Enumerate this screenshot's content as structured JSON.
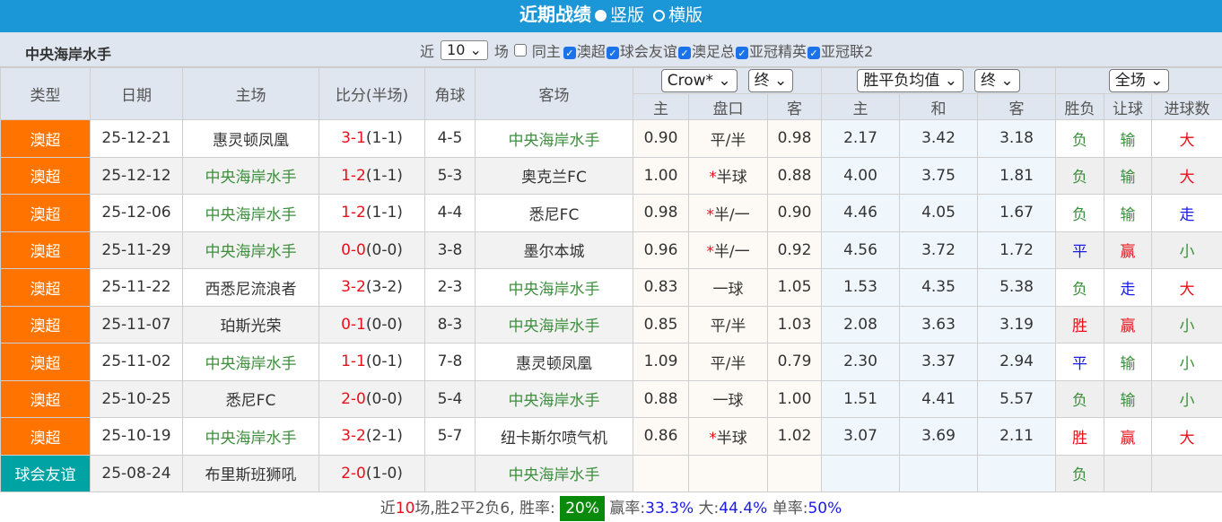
{
  "header": {
    "title": "近期战绩",
    "option_vertical": "竖版",
    "option_horizontal": "横版"
  },
  "filter": {
    "team": "中央海岸水手",
    "prefix": "近",
    "count": "10",
    "suffix": "场",
    "same_home": "同主",
    "competitions": [
      "澳超",
      "球会友谊",
      "澳足总",
      "亚冠精英",
      "亚冠联2"
    ]
  },
  "columns": {
    "type": "类型",
    "date": "日期",
    "home": "主场",
    "score": "比分(半场)",
    "corner": "角球",
    "away": "客场",
    "odds_company": "Crow*",
    "odds_time": "终",
    "eu_type": "胜平负均值",
    "eu_time": "终",
    "scope": "全场",
    "ah_home": "主",
    "ah_line": "盘口",
    "ah_away": "客",
    "eu_home": "主",
    "eu_draw": "和",
    "eu_away": "客",
    "res": "胜负",
    "handicap": "让球",
    "goals": "进球数"
  },
  "colors": {
    "header": "#1b96d6",
    "league_ausa": "#ff7300",
    "league_friendly": "#00a3a3",
    "focus_team": "#3c8f3c",
    "score": "#e8101a"
  },
  "rows": [
    {
      "league": "澳超",
      "date": "25-12-21",
      "home": "惠灵顿凤凰",
      "score": "3-1",
      "ht": "(1-1)",
      "corner": "4-5",
      "away": "中央海岸水手",
      "focus": "away",
      "ah_h": "0.90",
      "line": "平/半",
      "star": false,
      "ah_a": "0.98",
      "eh": "2.17",
      "ed": "3.42",
      "ea": "3.18",
      "res": "负",
      "hc": "输",
      "gl": "大"
    },
    {
      "league": "澳超",
      "date": "25-12-12",
      "home": "中央海岸水手",
      "score": "1-2",
      "ht": "(1-1)",
      "corner": "5-3",
      "away": "奥克兰FC",
      "focus": "home",
      "ah_h": "1.00",
      "line": "半球",
      "star": true,
      "ah_a": "0.88",
      "eh": "4.00",
      "ed": "3.75",
      "ea": "1.81",
      "res": "负",
      "hc": "输",
      "gl": "大"
    },
    {
      "league": "澳超",
      "date": "25-12-06",
      "home": "中央海岸水手",
      "score": "1-2",
      "ht": "(1-1)",
      "corner": "4-4",
      "away": "悉尼FC",
      "focus": "home",
      "ah_h": "0.98",
      "line": "半/一",
      "star": true,
      "ah_a": "0.90",
      "eh": "4.46",
      "ed": "4.05",
      "ea": "1.67",
      "res": "负",
      "hc": "输",
      "gl": "走"
    },
    {
      "league": "澳超",
      "date": "25-11-29",
      "home": "中央海岸水手",
      "score": "0-0",
      "ht": "(0-0)",
      "corner": "3-8",
      "away": "墨尔本城",
      "focus": "home",
      "ah_h": "0.96",
      "line": "半/一",
      "star": true,
      "ah_a": "0.92",
      "eh": "4.56",
      "ed": "3.72",
      "ea": "1.72",
      "res": "平",
      "hc": "赢",
      "gl": "小"
    },
    {
      "league": "澳超",
      "date": "25-11-22",
      "home": "西悉尼流浪者",
      "score": "3-2",
      "ht": "(3-2)",
      "corner": "2-3",
      "away": "中央海岸水手",
      "focus": "away",
      "ah_h": "0.83",
      "line": "一球",
      "star": false,
      "ah_a": "1.05",
      "eh": "1.53",
      "ed": "4.35",
      "ea": "5.38",
      "res": "负",
      "hc": "走",
      "gl": "大"
    },
    {
      "league": "澳超",
      "date": "25-11-07",
      "home": "珀斯光荣",
      "score": "0-1",
      "ht": "(0-0)",
      "corner": "8-3",
      "away": "中央海岸水手",
      "focus": "away",
      "ah_h": "0.85",
      "line": "平/半",
      "star": false,
      "ah_a": "1.03",
      "eh": "2.08",
      "ed": "3.63",
      "ea": "3.19",
      "res": "胜",
      "hc": "赢",
      "gl": "小"
    },
    {
      "league": "澳超",
      "date": "25-11-02",
      "home": "中央海岸水手",
      "score": "1-1",
      "ht": "(0-1)",
      "corner": "7-8",
      "away": "惠灵顿凤凰",
      "focus": "home",
      "ah_h": "1.09",
      "line": "平/半",
      "star": false,
      "ah_a": "0.79",
      "eh": "2.30",
      "ed": "3.37",
      "ea": "2.94",
      "res": "平",
      "hc": "输",
      "gl": "小"
    },
    {
      "league": "澳超",
      "date": "25-10-25",
      "home": "悉尼FC",
      "score": "2-0",
      "ht": "(0-0)",
      "corner": "5-4",
      "away": "中央海岸水手",
      "focus": "away",
      "ah_h": "0.88",
      "line": "一球",
      "star": false,
      "ah_a": "1.00",
      "eh": "1.51",
      "ed": "4.41",
      "ea": "5.57",
      "res": "负",
      "hc": "输",
      "gl": "小"
    },
    {
      "league": "澳超",
      "date": "25-10-19",
      "home": "中央海岸水手",
      "score": "3-2",
      "ht": "(2-1)",
      "corner": "5-7",
      "away": "纽卡斯尔喷气机",
      "focus": "home",
      "ah_h": "0.86",
      "line": "半球",
      "star": true,
      "ah_a": "1.02",
      "eh": "3.07",
      "ed": "3.69",
      "ea": "2.11",
      "res": "胜",
      "hc": "赢",
      "gl": "大"
    },
    {
      "league": "球会友谊",
      "date": "25-08-24",
      "home": "布里斯班狮吼",
      "score": "2-0",
      "ht": "(1-0)",
      "corner": "",
      "away": "中央海岸水手",
      "focus": "away",
      "ah_h": "",
      "line": "",
      "star": false,
      "ah_a": "",
      "eh": "",
      "ed": "",
      "ea": "",
      "res": "负",
      "hc": "",
      "gl": ""
    }
  ],
  "summary": {
    "pre": "近",
    "n": "10",
    "post": "场,胜2平2负6, 胜率:",
    "win_rate": "20%",
    "win_label": "赢率:",
    "win_val": "33.3%",
    "big_label": "大:",
    "big_val": "44.4%",
    "odd_label": "单率:",
    "odd_val": "50%"
  }
}
